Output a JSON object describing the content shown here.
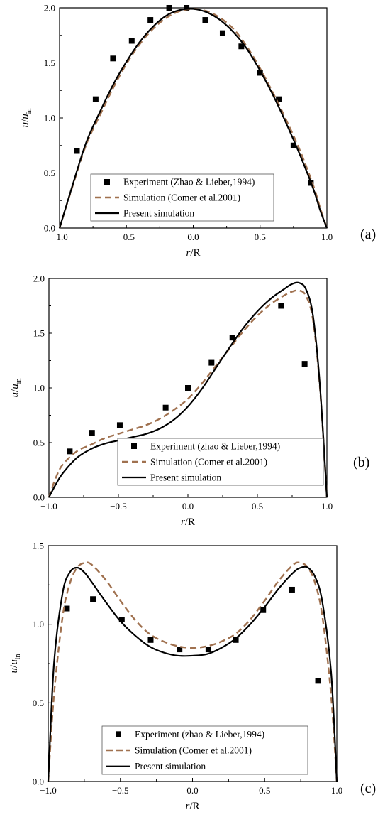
{
  "colors": {
    "experiment": "#000000",
    "comer": "#a0714f",
    "present": "#000000"
  },
  "chart_data": [
    {
      "type": "line",
      "panel_label": "(a)",
      "xlabel": "r/R",
      "ylabel": "u/u_in",
      "xlim": [
        -1.0,
        1.0
      ],
      "ylim": [
        0.0,
        2.0
      ],
      "xticks": [
        "-1.0",
        "-0.5",
        "0.0",
        "0.5",
        "1.0"
      ],
      "yticks": [
        "0.0",
        "0.5",
        "1.0",
        "1.5",
        "2.0"
      ],
      "legend_position": "bottom-center",
      "legend": [
        "Experiment (Zhao & Lieber,1994)",
        "Simulation (Comer et al.2001)",
        "Present simulation"
      ],
      "series": [
        {
          "name": "Experiment (Zhao & Lieber,1994)",
          "kind": "markers",
          "x": [
            -0.87,
            -0.73,
            -0.6,
            -0.46,
            -0.32,
            -0.18,
            -0.05,
            0.09,
            0.22,
            0.36,
            0.5,
            0.64,
            0.75,
            0.88
          ],
          "y": [
            0.7,
            1.17,
            1.54,
            1.7,
            1.89,
            2.0,
            2.0,
            1.89,
            1.77,
            1.65,
            1.41,
            1.17,
            0.75,
            0.41
          ]
        },
        {
          "name": "Simulation (Comer et al.2001)",
          "kind": "dashed",
          "x": [
            -1.0,
            -0.9,
            -0.8,
            -0.7,
            -0.6,
            -0.5,
            -0.4,
            -0.3,
            -0.2,
            -0.1,
            0.0,
            0.1,
            0.2,
            0.3,
            0.4,
            0.5,
            0.6,
            0.7,
            0.8,
            0.9,
            0.95,
            1.0
          ],
          "y": [
            0.0,
            0.39,
            0.76,
            1.02,
            1.27,
            1.49,
            1.67,
            1.81,
            1.91,
            1.97,
            1.99,
            1.97,
            1.91,
            1.81,
            1.65,
            1.45,
            1.22,
            0.97,
            0.7,
            0.38,
            0.18,
            0.0
          ]
        },
        {
          "name": "Present simulation",
          "kind": "solid",
          "x": [
            -1.0,
            -0.9,
            -0.8,
            -0.7,
            -0.6,
            -0.5,
            -0.4,
            -0.3,
            -0.2,
            -0.1,
            0.0,
            0.1,
            0.2,
            0.3,
            0.4,
            0.5,
            0.6,
            0.7,
            0.8,
            0.9,
            0.95,
            1.0
          ],
          "y": [
            0.0,
            0.4,
            0.78,
            1.05,
            1.3,
            1.51,
            1.69,
            1.83,
            1.93,
            1.98,
            1.99,
            1.96,
            1.89,
            1.78,
            1.63,
            1.43,
            1.2,
            0.94,
            0.66,
            0.35,
            0.16,
            0.0
          ]
        }
      ]
    },
    {
      "type": "line",
      "panel_label": "(b)",
      "xlabel": "r/R",
      "ylabel": "u/u_in",
      "xlim": [
        -1.0,
        1.0
      ],
      "ylim": [
        0.0,
        2.0
      ],
      "xticks": [
        "-1.0",
        "-0.5",
        "0.0",
        "0.5",
        "1.0"
      ],
      "yticks": [
        "0.0",
        "0.5",
        "1.0",
        "1.5",
        "2.0"
      ],
      "legend_position": "bottom-center",
      "legend": [
        "Experiment (zhao & Lieber,1994)",
        "Simulation (Comer et al.2001)",
        "Present simulation"
      ],
      "series": [
        {
          "name": "Experiment (zhao & Lieber,1994)",
          "kind": "markers",
          "x": [
            -0.85,
            -0.69,
            -0.49,
            -0.16,
            0.0,
            0.17,
            0.32,
            0.67,
            0.84
          ],
          "y": [
            0.42,
            0.59,
            0.66,
            0.82,
            1.0,
            1.23,
            1.46,
            1.75,
            1.22
          ]
        },
        {
          "name": "Simulation (Comer et al.2001)",
          "kind": "dashed",
          "x": [
            -1.0,
            -0.95,
            -0.9,
            -0.8,
            -0.7,
            -0.6,
            -0.5,
            -0.4,
            -0.3,
            -0.2,
            -0.1,
            0.0,
            0.1,
            0.2,
            0.3,
            0.4,
            0.5,
            0.6,
            0.7,
            0.75,
            0.8,
            0.85,
            0.9,
            0.95,
            1.0
          ],
          "y": [
            0.0,
            0.18,
            0.3,
            0.42,
            0.48,
            0.54,
            0.58,
            0.62,
            0.66,
            0.72,
            0.8,
            0.9,
            1.04,
            1.2,
            1.36,
            1.52,
            1.66,
            1.77,
            1.85,
            1.88,
            1.89,
            1.84,
            1.62,
            1.0,
            0.0
          ]
        },
        {
          "name": "Present simulation",
          "kind": "solid",
          "x": [
            -1.0,
            -0.95,
            -0.9,
            -0.8,
            -0.7,
            -0.6,
            -0.5,
            -0.4,
            -0.3,
            -0.2,
            -0.1,
            0.0,
            0.1,
            0.2,
            0.3,
            0.4,
            0.5,
            0.6,
            0.7,
            0.75,
            0.8,
            0.85,
            0.9,
            0.95,
            1.0
          ],
          "y": [
            0.0,
            0.12,
            0.22,
            0.36,
            0.44,
            0.49,
            0.52,
            0.55,
            0.58,
            0.63,
            0.71,
            0.83,
            0.99,
            1.18,
            1.37,
            1.55,
            1.7,
            1.82,
            1.91,
            1.95,
            1.96,
            1.9,
            1.66,
            1.02,
            0.0
          ]
        }
      ]
    },
    {
      "type": "line",
      "panel_label": "(c)",
      "xlabel": "r/R",
      "ylabel": "u/u_in",
      "xlim": [
        -1.0,
        1.0
      ],
      "ylim": [
        0.0,
        1.5
      ],
      "xticks": [
        "-1.0",
        "-0.5",
        "0.0",
        "0.5",
        "1.0"
      ],
      "yticks": [
        "0.0",
        "0.5",
        "1.0",
        "1.5"
      ],
      "legend_position": "bottom-center",
      "legend": [
        "Experiment (zhao & Lieber,1994)",
        "Simulation (Comer et al.2001)",
        "Present simulation"
      ],
      "series": [
        {
          "name": "Experiment (zhao & Lieber,1994)",
          "kind": "markers",
          "x": [
            -0.87,
            -0.69,
            -0.49,
            -0.29,
            -0.09,
            0.11,
            0.3,
            0.49,
            0.69,
            0.87
          ],
          "y": [
            1.1,
            1.16,
            1.03,
            0.9,
            0.84,
            0.84,
            0.9,
            1.09,
            1.22,
            0.64
          ]
        },
        {
          "name": "Simulation (Comer et al.2001)",
          "kind": "dashed",
          "x": [
            -1.0,
            -0.96,
            -0.9,
            -0.85,
            -0.8,
            -0.75,
            -0.7,
            -0.6,
            -0.5,
            -0.4,
            -0.3,
            -0.2,
            -0.1,
            0.0,
            0.1,
            0.2,
            0.3,
            0.4,
            0.5,
            0.6,
            0.7,
            0.75,
            0.8,
            0.85,
            0.9,
            0.96,
            1.0
          ],
          "y": [
            0.0,
            0.55,
            1.05,
            1.26,
            1.36,
            1.39,
            1.38,
            1.28,
            1.15,
            1.03,
            0.94,
            0.89,
            0.86,
            0.85,
            0.86,
            0.89,
            0.94,
            1.03,
            1.15,
            1.28,
            1.38,
            1.39,
            1.36,
            1.26,
            1.05,
            0.55,
            0.0
          ]
        },
        {
          "name": "Present simulation",
          "kind": "solid",
          "x": [
            -1.0,
            -0.96,
            -0.9,
            -0.85,
            -0.8,
            -0.75,
            -0.7,
            -0.6,
            -0.5,
            -0.4,
            -0.3,
            -0.2,
            -0.1,
            0.0,
            0.1,
            0.2,
            0.3,
            0.4,
            0.5,
            0.6,
            0.7,
            0.75,
            0.8,
            0.85,
            0.9,
            0.96,
            1.0
          ],
          "y": [
            0.0,
            0.75,
            1.2,
            1.33,
            1.36,
            1.33,
            1.27,
            1.14,
            1.02,
            0.93,
            0.86,
            0.82,
            0.8,
            0.8,
            0.81,
            0.85,
            0.91,
            1.0,
            1.11,
            1.23,
            1.33,
            1.36,
            1.36,
            1.3,
            1.14,
            0.7,
            0.0
          ]
        }
      ]
    }
  ]
}
